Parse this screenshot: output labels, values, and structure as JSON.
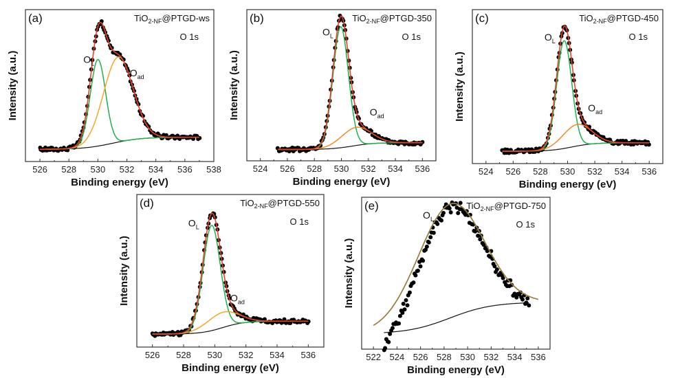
{
  "chart_data": [
    {
      "id": "a",
      "type": "line",
      "panel_label": "(a)",
      "sample_label": {
        "main": "TiO",
        "sub": "2-NF",
        "suffix": "@PTGD-ws"
      },
      "core_level": "O 1s",
      "xlabel": "Binding energy (eV)",
      "ylabel": "Intensity (a.u.)",
      "xlim": [
        525,
        538
      ],
      "xticks": [
        526,
        528,
        530,
        532,
        534,
        536,
        538
      ],
      "ylim": [
        0,
        1
      ],
      "data_range": [
        526,
        537
      ],
      "background": {
        "low": 0.08,
        "high": 0.16,
        "center": 531,
        "width": 1.0
      },
      "components": [
        {
          "name": "O_L",
          "label": "O",
          "label_sub": "L",
          "center": 530.0,
          "height": 0.57,
          "fwhm": 1.25,
          "color": "#1db04b",
          "label_at": [
            529.0,
            0.65
          ]
        },
        {
          "name": "O_ad",
          "label": "O",
          "label_sub": "ad",
          "center": 531.4,
          "height": 0.56,
          "fwhm": 2.4,
          "color": "#f5a623",
          "label_at": [
            532.2,
            0.56
          ]
        }
      ],
      "fit_color": "#e8402a",
      "points_color": "#000000"
    },
    {
      "id": "b",
      "type": "line",
      "panel_label": "(b)",
      "sample_label": {
        "main": "TiO",
        "sub": "2-NF",
        "suffix": "@PTGD-350"
      },
      "core_level": "O 1s",
      "xlabel": "Binding energy (eV)",
      "ylabel": "Intensity (a.u.)",
      "xlim": [
        523,
        537
      ],
      "xticks": [
        524,
        526,
        528,
        530,
        532,
        534,
        536
      ],
      "ylim": [
        0,
        1
      ],
      "data_range": [
        525.3,
        536
      ],
      "background": {
        "low": 0.075,
        "high": 0.12,
        "center": 530.8,
        "width": 0.8
      },
      "components": [
        {
          "name": "O_L",
          "label": "O",
          "label_sub": "L",
          "center": 529.95,
          "height": 0.8,
          "fwhm": 1.35,
          "color": "#1db04b",
          "label_at": [
            528.6,
            0.83
          ]
        },
        {
          "name": "O_ad",
          "label": "O",
          "label_sub": "ad",
          "center": 531.1,
          "height": 0.12,
          "fwhm": 2.6,
          "color": "#f08a24",
          "label_at": [
            532.1,
            0.3
          ]
        }
      ],
      "fit_color": "#e8402a",
      "points_color": "#000000"
    },
    {
      "id": "c",
      "type": "line",
      "panel_label": "(c)",
      "sample_label": {
        "main": "TiO",
        "sub": "2-NF",
        "suffix": "@PTGD-450"
      },
      "core_level": "O 1s",
      "xlabel": "Binding energy (eV)",
      "ylabel": "Intensity (a.u.)",
      "xlim": [
        523,
        537
      ],
      "xticks": [
        524,
        526,
        528,
        530,
        532,
        534,
        536
      ],
      "ylim": [
        0,
        1
      ],
      "data_range": [
        525.2,
        536
      ],
      "background": {
        "low": 0.08,
        "high": 0.135,
        "center": 530.3,
        "width": 0.8
      },
      "components": [
        {
          "name": "O_L",
          "label": "O",
          "label_sub": "L",
          "center": 529.75,
          "height": 0.7,
          "fwhm": 1.3,
          "color": "#1db04b",
          "label_at": [
            528.3,
            0.8
          ]
        },
        {
          "name": "O_ad",
          "label": "O",
          "label_sub": "ad",
          "center": 530.7,
          "height": 0.14,
          "fwhm": 2.5,
          "color": "#f08a24",
          "label_at": [
            531.5,
            0.34
          ]
        }
      ],
      "fit_color": "#e8402a",
      "points_color": "#000000"
    },
    {
      "id": "d",
      "type": "line",
      "panel_label": "(d)",
      "sample_label": {
        "main": "TiO",
        "sub": "2-NF",
        "suffix": "@PTGD-550"
      },
      "core_level": "O 1s",
      "xlabel": "Binding energy (eV)",
      "ylabel": "Intensity (a.u.)",
      "xlim": [
        525,
        537
      ],
      "xticks": [
        526,
        528,
        530,
        532,
        534,
        536
      ],
      "ylim": [
        0,
        1
      ],
      "data_range": [
        526,
        536
      ],
      "background": {
        "low": 0.085,
        "high": 0.17,
        "center": 530.5,
        "width": 0.7
      },
      "components": [
        {
          "name": "O_L",
          "label": "O",
          "label_sub": "L",
          "center": 529.8,
          "height": 0.69,
          "fwhm": 1.3,
          "color": "#1db04b",
          "label_at": [
            528.3,
            0.79
          ]
        },
        {
          "name": "O_ad",
          "label": "O",
          "label_sub": "ad",
          "center": 530.5,
          "height": 0.1,
          "fwhm": 2.4,
          "color": "#f5a623",
          "label_at": [
            531.0,
            0.3
          ]
        }
      ],
      "fit_color": "#e8402a",
      "points_color": "#000000"
    },
    {
      "id": "e",
      "type": "line",
      "panel_label": "(e)",
      "sample_label": {
        "main": "TiO",
        "sub": "2-NF",
        "suffix": "@PTGD-750"
      },
      "core_level": "O 1s",
      "xlabel": "Binding energy (eV)",
      "ylabel": "Intensity (a.u.)",
      "xlim": [
        521,
        537
      ],
      "xticks": [
        522,
        524,
        526,
        528,
        530,
        532,
        534,
        536
      ],
      "ylim": [
        0,
        1
      ],
      "data_range": [
        522.9,
        535.2
      ],
      "background": {
        "low": 0.1,
        "high": 0.31,
        "center": 528.5,
        "width": 1.8
      },
      "components": [
        {
          "name": "O_L",
          "label": "O",
          "label_sub": "L",
          "center": 528.5,
          "height": 0.75,
          "fwhm": 6.6,
          "color": "#4caf50",
          "label_at": [
            526.2,
            0.86
          ]
        }
      ],
      "fit_color": "#9a7a3a",
      "points_color": "#000000"
    }
  ]
}
